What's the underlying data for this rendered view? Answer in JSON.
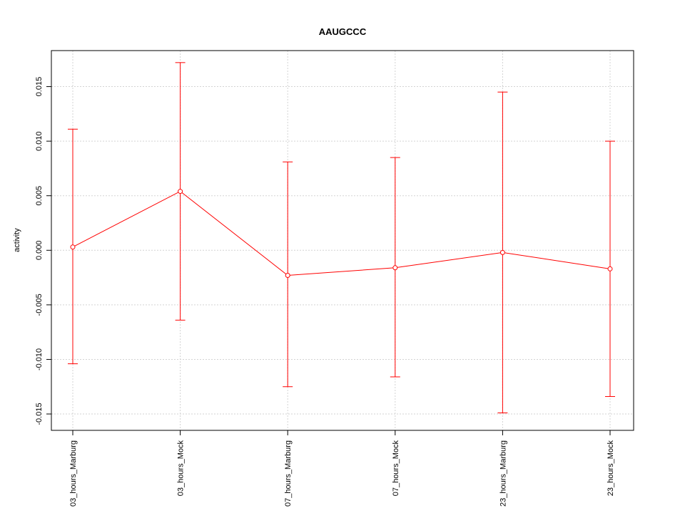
{
  "chart_data": {
    "type": "line",
    "title": "AAUGCCC",
    "xlabel": "",
    "ylabel": "activity",
    "categories": [
      "03_hours_Marburg",
      "03_hours_Mock",
      "07_hours_Marburg",
      "07_hours_Mock",
      "23_hours_Marburg",
      "23_hours_Mock"
    ],
    "series": [
      {
        "values": [
          0.0003,
          0.0054,
          -0.0023,
          -0.0016,
          -0.0002,
          -0.0017
        ],
        "error_low": [
          -0.0104,
          -0.0064,
          -0.0125,
          -0.0116,
          -0.0149,
          -0.0134
        ],
        "error_high": [
          0.0111,
          0.0172,
          0.0081,
          0.0085,
          0.0145,
          0.01
        ],
        "color": "#ff0000"
      }
    ],
    "ylim": [
      -0.0165,
      0.0183
    ],
    "yticks": [
      -0.015,
      -0.01,
      -0.005,
      0.0,
      0.005,
      0.01,
      0.015
    ],
    "ytick_labels": [
      "-0.015",
      "-0.010",
      "-0.005",
      "0.000",
      "0.005",
      "0.010",
      "0.015"
    ],
    "grid": true,
    "grid_color": "#d3d3d3",
    "legend": "none"
  }
}
